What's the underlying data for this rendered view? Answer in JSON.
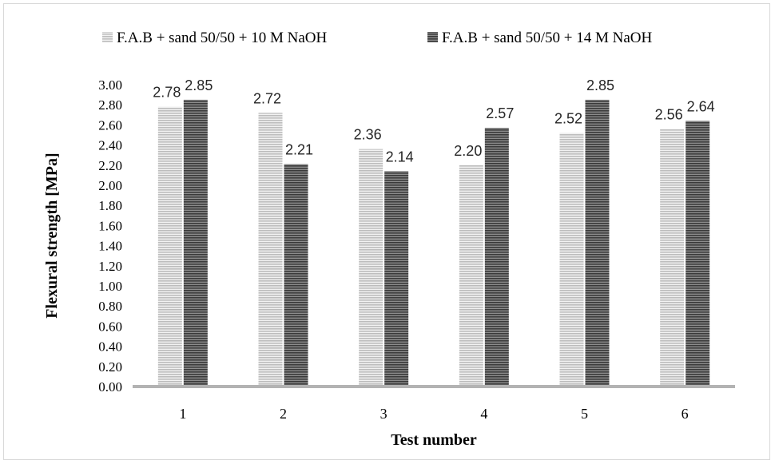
{
  "chart_data": {
    "type": "bar",
    "categories": [
      "1",
      "2",
      "3",
      "4",
      "5",
      "6"
    ],
    "series": [
      {
        "name": "F.A.B + sand 50/50 + 10 M NaOH",
        "values": [
          2.78,
          2.72,
          2.36,
          2.2,
          2.52,
          2.56
        ],
        "color": "#c8c8c8"
      },
      {
        "name": "F.A.B + sand 50/50 + 14 M NaOH",
        "values": [
          2.85,
          2.21,
          2.14,
          2.57,
          2.85,
          2.64
        ],
        "color": "#6e6e6e"
      }
    ],
    "data_labels": [
      [
        "2.78",
        "2.72",
        "2.36",
        "2.20",
        "2.52",
        "2.56"
      ],
      [
        "2.85",
        "2.21",
        "2.14",
        "2.57",
        "2.85",
        "2.64"
      ]
    ],
    "yticks": [
      "0.00",
      "0.20",
      "0.40",
      "0.60",
      "0.80",
      "1.00",
      "1.20",
      "1.40",
      "1.60",
      "1.80",
      "2.00",
      "2.20",
      "2.40",
      "2.60",
      "2.80",
      "3.00"
    ],
    "xlabel": "Test number",
    "ylabel": "Flexural strength [MPa]",
    "ylim": [
      0,
      3.0
    ],
    "legend_position": "top",
    "grid": false
  }
}
